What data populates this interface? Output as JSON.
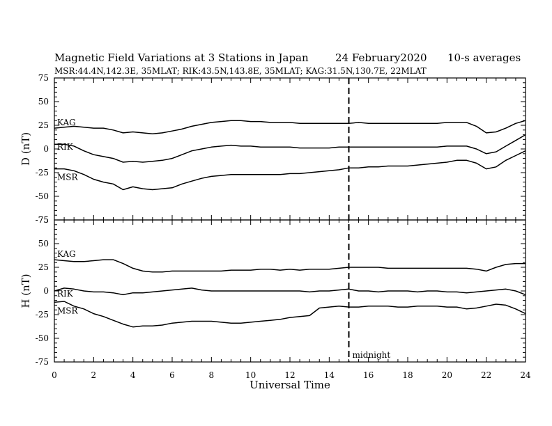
{
  "header": {
    "title": "Magnetic Field Variations at 3 Stations in Japan",
    "date": "24 February2020",
    "averaging": "10-s averages",
    "stations": "MSR:44.4N,142.3E, 35MLAT;  RIK:43.5N,143.8E, 35MLAT;  KAG:31.5N,130.7E, 22MLAT"
  },
  "chart_data": [
    {
      "type": "line",
      "panel": "D",
      "ylabel": "D (nT)",
      "xlabel": "",
      "xlim": [
        0,
        24
      ],
      "ylim": [
        -75,
        75
      ],
      "xticks": [
        0,
        2,
        4,
        6,
        8,
        10,
        12,
        14,
        16,
        18,
        20,
        22,
        24
      ],
      "yticks": [
        75,
        50,
        25,
        0,
        -25,
        -50,
        -75
      ],
      "x": [
        0,
        0.5,
        1,
        1.5,
        2,
        2.5,
        3,
        3.5,
        4,
        4.5,
        5,
        5.5,
        6,
        6.5,
        7,
        7.5,
        8,
        8.5,
        9,
        9.5,
        10,
        10.5,
        11,
        11.5,
        12,
        12.5,
        13,
        13.5,
        14,
        14.5,
        15,
        15.5,
        16,
        16.5,
        17,
        17.5,
        18,
        18.5,
        19,
        19.5,
        20,
        20.5,
        21,
        21.5,
        22,
        22.5,
        23,
        23.5,
        24
      ],
      "series": [
        {
          "name": "KAG",
          "values": [
            22,
            23,
            24,
            23,
            22,
            22,
            20,
            17,
            18,
            17,
            16,
            17,
            19,
            21,
            24,
            26,
            28,
            29,
            30,
            30,
            29,
            29,
            28,
            28,
            28,
            27,
            27,
            27,
            27,
            27,
            27,
            28,
            27,
            27,
            27,
            27,
            27,
            27,
            27,
            27,
            28,
            28,
            28,
            24,
            17,
            18,
            22,
            27,
            30
          ]
        },
        {
          "name": "RIK",
          "values": [
            5,
            5,
            3,
            -2,
            -6,
            -8,
            -10,
            -14,
            -13,
            -14,
            -13,
            -12,
            -10,
            -6,
            -2,
            0,
            2,
            3,
            4,
            3,
            3,
            2,
            2,
            2,
            2,
            1,
            1,
            1,
            1,
            2,
            2,
            2,
            2,
            2,
            2,
            2,
            2,
            2,
            2,
            2,
            3,
            3,
            3,
            0,
            -5,
            -3,
            3,
            9,
            15
          ]
        },
        {
          "name": "MSR",
          "values": [
            -21,
            -21,
            -23,
            -27,
            -32,
            -35,
            -37,
            -43,
            -40,
            -42,
            -43,
            -42,
            -41,
            -37,
            -34,
            -31,
            -29,
            -28,
            -27,
            -27,
            -27,
            -27,
            -27,
            -27,
            -26,
            -26,
            -25,
            -24,
            -23,
            -22,
            -20,
            -20,
            -19,
            -19,
            -18,
            -18,
            -18,
            -17,
            -16,
            -15,
            -14,
            -12,
            -12,
            -15,
            -21,
            -19,
            -12,
            -7,
            -2
          ]
        }
      ]
    },
    {
      "type": "line",
      "panel": "H",
      "ylabel": "H (nT)",
      "xlabel": "Universal Time",
      "xlim": [
        0,
        24
      ],
      "ylim": [
        -75,
        75
      ],
      "xticks": [
        0,
        2,
        4,
        6,
        8,
        10,
        12,
        14,
        16,
        18,
        20,
        22,
        24
      ],
      "yticks": [
        75,
        50,
        25,
        0,
        -25,
        -50,
        -75
      ],
      "x": [
        0,
        0.5,
        1,
        1.5,
        2,
        2.5,
        3,
        3.5,
        4,
        4.5,
        5,
        5.5,
        6,
        6.5,
        7,
        7.5,
        8,
        8.5,
        9,
        9.5,
        10,
        10.5,
        11,
        11.5,
        12,
        12.5,
        13,
        13.5,
        14,
        14.5,
        15,
        15.5,
        16,
        16.5,
        17,
        17.5,
        18,
        18.5,
        19,
        19.5,
        20,
        20.5,
        21,
        21.5,
        22,
        22.5,
        23,
        23.5,
        24
      ],
      "series": [
        {
          "name": "KAG",
          "values": [
            33,
            32,
            31,
            31,
            32,
            33,
            33,
            29,
            24,
            21,
            20,
            20,
            21,
            21,
            21,
            21,
            21,
            21,
            22,
            22,
            22,
            23,
            23,
            22,
            23,
            22,
            23,
            23,
            23,
            24,
            25,
            25,
            25,
            25,
            24,
            24,
            24,
            24,
            24,
            24,
            24,
            24,
            24,
            23,
            21,
            25,
            28,
            29,
            29
          ]
        },
        {
          "name": "RIK",
          "values": [
            0,
            3,
            2,
            0,
            -1,
            -1,
            -2,
            -4,
            -2,
            -2,
            -1,
            0,
            1,
            2,
            3,
            1,
            0,
            0,
            0,
            0,
            0,
            0,
            0,
            0,
            0,
            0,
            -1,
            0,
            0,
            1,
            2,
            0,
            0,
            -1,
            0,
            0,
            0,
            -1,
            0,
            0,
            -1,
            -1,
            -2,
            -1,
            0,
            1,
            2,
            0,
            -4
          ]
        },
        {
          "name": "MSR",
          "values": [
            -12,
            -11,
            -16,
            -19,
            -24,
            -27,
            -31,
            -35,
            -38,
            -37,
            -37,
            -36,
            -34,
            -33,
            -32,
            -32,
            -32,
            -33,
            -34,
            -34,
            -33,
            -32,
            -31,
            -30,
            -28,
            -27,
            -26,
            -18,
            -17,
            -16,
            -17,
            -17,
            -16,
            -16,
            -16,
            -17,
            -17,
            -16,
            -16,
            -16,
            -17,
            -17,
            -19,
            -18,
            -16,
            -14,
            -15,
            -19,
            -24
          ]
        }
      ]
    }
  ],
  "midnight_marker": {
    "x": 15,
    "label": "midnight"
  }
}
